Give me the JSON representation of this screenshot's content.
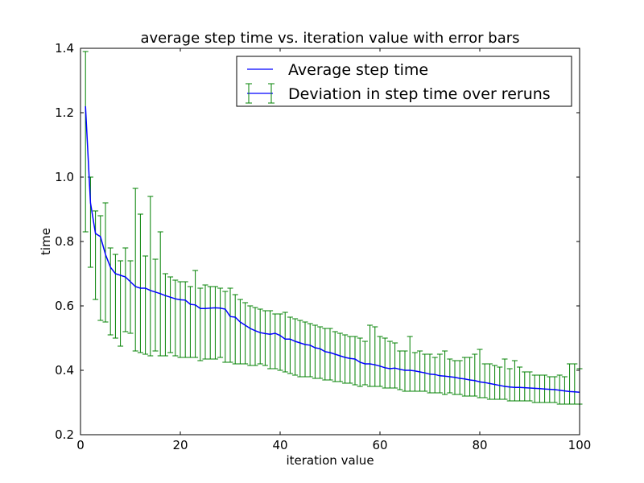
{
  "chart_data": {
    "type": "line",
    "title": "average step time vs. iteration value with error bars",
    "xlabel": "iteration value",
    "ylabel": "time",
    "xlim": [
      0,
      100
    ],
    "ylim": [
      0.2,
      1.4
    ],
    "x_ticks": [
      0,
      20,
      40,
      60,
      80,
      100
    ],
    "y_ticks": [
      0.2,
      0.4,
      0.6,
      0.8,
      1.0,
      1.2,
      1.4
    ],
    "x_tick_labels": [
      "0",
      "20",
      "40",
      "60",
      "80",
      "100"
    ],
    "y_tick_labels": [
      "0.2",
      "0.4",
      "0.6",
      "0.8",
      "1.0",
      "1.2",
      "1.4"
    ],
    "grid": false,
    "legend_position": "top-right",
    "x": [
      1,
      2,
      3,
      4,
      5,
      6,
      7,
      8,
      9,
      10,
      11,
      12,
      13,
      14,
      15,
      16,
      17,
      18,
      19,
      20,
      21,
      22,
      23,
      24,
      25,
      26,
      27,
      28,
      29,
      30,
      31,
      32,
      33,
      34,
      35,
      36,
      37,
      38,
      39,
      40,
      41,
      42,
      43,
      44,
      45,
      46,
      47,
      48,
      49,
      50,
      51,
      52,
      53,
      54,
      55,
      56,
      57,
      58,
      59,
      60,
      61,
      62,
      63,
      64,
      65,
      66,
      67,
      68,
      69,
      70,
      71,
      72,
      73,
      74,
      75,
      76,
      77,
      78,
      79,
      80,
      81,
      82,
      83,
      84,
      85,
      86,
      87,
      88,
      89,
      90,
      91,
      92,
      93,
      94,
      95,
      96,
      97,
      98,
      99,
      100
    ],
    "series": [
      {
        "name": "Average step time",
        "color": "#0000ff",
        "values": [
          1.22,
          0.92,
          0.825,
          0.815,
          0.76,
          0.72,
          0.7,
          0.695,
          0.69,
          0.675,
          0.66,
          0.655,
          0.655,
          0.648,
          0.643,
          0.638,
          0.632,
          0.627,
          0.622,
          0.619,
          0.618,
          0.605,
          0.603,
          0.592,
          0.592,
          0.593,
          0.594,
          0.593,
          0.59,
          0.567,
          0.565,
          0.55,
          0.54,
          0.53,
          0.523,
          0.517,
          0.514,
          0.512,
          0.515,
          0.508,
          0.497,
          0.497,
          0.49,
          0.485,
          0.48,
          0.478,
          0.47,
          0.467,
          0.458,
          0.455,
          0.45,
          0.445,
          0.44,
          0.437,
          0.435,
          0.425,
          0.42,
          0.42,
          0.417,
          0.413,
          0.408,
          0.405,
          0.407,
          0.403,
          0.4,
          0.4,
          0.398,
          0.395,
          0.392,
          0.388,
          0.387,
          0.383,
          0.382,
          0.38,
          0.378,
          0.375,
          0.373,
          0.37,
          0.368,
          0.364,
          0.362,
          0.359,
          0.356,
          0.353,
          0.35,
          0.348,
          0.347,
          0.347,
          0.346,
          0.345,
          0.344,
          0.343,
          0.342,
          0.341,
          0.34,
          0.338,
          0.336,
          0.334,
          0.333,
          0.332
        ]
      }
    ],
    "error_bars": {
      "name": "Deviation in step time over reruns",
      "color": "#008000",
      "upper": [
        1.39,
        1.0,
        0.895,
        0.88,
        0.92,
        0.78,
        0.76,
        0.74,
        0.78,
        0.74,
        0.965,
        0.885,
        0.755,
        0.94,
        0.745,
        0.83,
        0.7,
        0.69,
        0.68,
        0.675,
        0.675,
        0.66,
        0.71,
        0.655,
        0.665,
        0.66,
        0.66,
        0.655,
        0.645,
        0.655,
        0.635,
        0.62,
        0.61,
        0.6,
        0.595,
        0.59,
        0.585,
        0.585,
        0.575,
        0.575,
        0.58,
        0.565,
        0.56,
        0.555,
        0.55,
        0.545,
        0.54,
        0.535,
        0.53,
        0.53,
        0.52,
        0.515,
        0.51,
        0.505,
        0.505,
        0.5,
        0.49,
        0.54,
        0.535,
        0.505,
        0.5,
        0.49,
        0.485,
        0.46,
        0.46,
        0.505,
        0.455,
        0.46,
        0.45,
        0.45,
        0.44,
        0.45,
        0.46,
        0.435,
        0.43,
        0.43,
        0.44,
        0.44,
        0.45,
        0.465,
        0.42,
        0.42,
        0.415,
        0.41,
        0.435,
        0.405,
        0.43,
        0.41,
        0.395,
        0.395,
        0.385,
        0.385,
        0.385,
        0.38,
        0.38,
        0.385,
        0.38,
        0.42,
        0.42,
        0.405
      ],
      "lower": [
        0.83,
        0.72,
        0.62,
        0.555,
        0.55,
        0.51,
        0.5,
        0.475,
        0.52,
        0.515,
        0.46,
        0.455,
        0.45,
        0.445,
        0.46,
        0.445,
        0.445,
        0.455,
        0.445,
        0.44,
        0.44,
        0.44,
        0.44,
        0.43,
        0.435,
        0.435,
        0.435,
        0.44,
        0.425,
        0.425,
        0.42,
        0.42,
        0.42,
        0.415,
        0.415,
        0.42,
        0.415,
        0.405,
        0.405,
        0.4,
        0.395,
        0.39,
        0.385,
        0.38,
        0.38,
        0.38,
        0.375,
        0.375,
        0.37,
        0.37,
        0.365,
        0.365,
        0.36,
        0.36,
        0.355,
        0.35,
        0.355,
        0.35,
        0.35,
        0.35,
        0.345,
        0.345,
        0.345,
        0.34,
        0.335,
        0.335,
        0.335,
        0.335,
        0.335,
        0.33,
        0.33,
        0.33,
        0.325,
        0.33,
        0.325,
        0.325,
        0.32,
        0.32,
        0.32,
        0.315,
        0.315,
        0.31,
        0.31,
        0.31,
        0.31,
        0.305,
        0.305,
        0.305,
        0.305,
        0.305,
        0.3,
        0.3,
        0.3,
        0.3,
        0.3,
        0.295,
        0.295,
        0.295,
        0.295,
        0.295
      ]
    }
  }
}
